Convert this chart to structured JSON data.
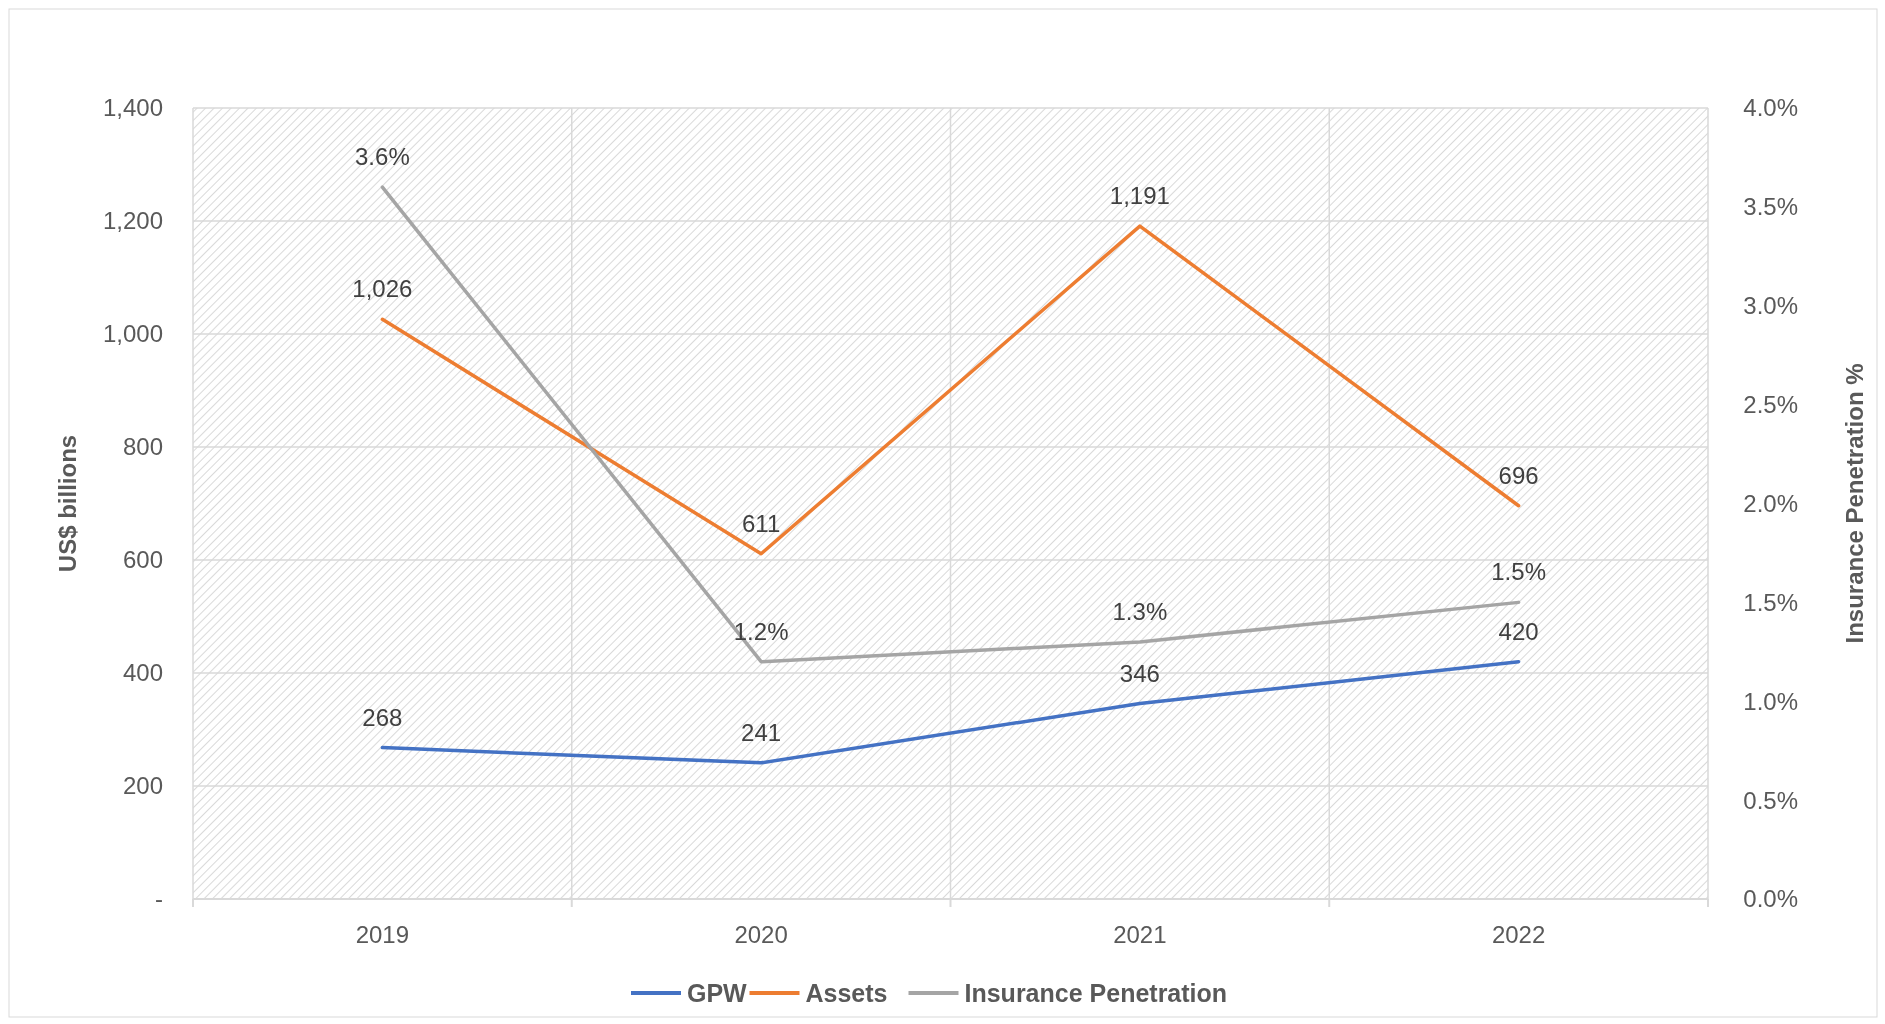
{
  "chart_data": {
    "type": "line",
    "ylabel": "US$ billions",
    "y2label": "Insurance Penetration %",
    "categories": [
      "2019",
      "2020",
      "2021",
      "2022"
    ],
    "series": [
      {
        "name": "GPW",
        "color": "#4472c4",
        "values": [
          268,
          241,
          346,
          420
        ],
        "value_labels": [
          "268",
          "241",
          "346",
          "420"
        ]
      },
      {
        "name": "Assets",
        "color": "#ed7d31",
        "values": [
          1026,
          611,
          1191,
          696
        ],
        "value_labels": [
          "1,026",
          "611",
          "1,191",
          "696"
        ]
      },
      {
        "name": "Insurance Penetration",
        "color": "#a5a5a5",
        "axis": "y2",
        "values": [
          3.6,
          1.2,
          1.3,
          1.5
        ],
        "value_labels": [
          "3.6%",
          "1.2%",
          "1.3%",
          "1.5%"
        ]
      }
    ],
    "ylim": [
      0,
      1400
    ],
    "yticks": [
      {
        "value": 0,
        "label": "-"
      },
      {
        "value": 200,
        "label": "200"
      },
      {
        "value": 400,
        "label": "400"
      },
      {
        "value": 600,
        "label": "600"
      },
      {
        "value": 800,
        "label": "800"
      },
      {
        "value": 1000,
        "label": "1,000"
      },
      {
        "value": 1200,
        "label": "1,200"
      },
      {
        "value": 1400,
        "label": "1,400"
      }
    ],
    "y2lim": [
      0,
      4
    ],
    "y2ticks": [
      {
        "value": 0,
        "label": "0.0%"
      },
      {
        "value": 0.5,
        "label": "0.5%"
      },
      {
        "value": 1,
        "label": "1.0%"
      },
      {
        "value": 1.5,
        "label": "1.5%"
      },
      {
        "value": 2,
        "label": "2.0%"
      },
      {
        "value": 2.5,
        "label": "2.5%"
      },
      {
        "value": 3,
        "label": "3.0%"
      },
      {
        "value": 3.5,
        "label": "3.5%"
      },
      {
        "value": 4,
        "label": "4.0%"
      }
    ],
    "grid": true,
    "legend": "bottom",
    "marker": "none",
    "line_style": "solid"
  }
}
